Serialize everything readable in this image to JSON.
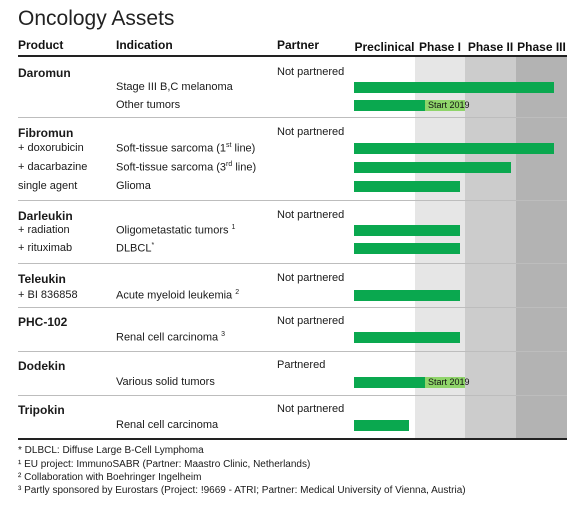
{
  "title": "Oncology Assets",
  "headers": {
    "product": "Product",
    "indication": "Indication",
    "partner": "Partner"
  },
  "colors": {
    "bar": "#0aa84f",
    "bar_light": "#8fd46a",
    "phase_bg": [
      "#ffffff",
      "#e6e6e6",
      "#cccccc",
      "#b3b3b3"
    ]
  },
  "chart_data": {
    "type": "bar",
    "orientation": "horizontal",
    "stages": [
      "Preclinical",
      "Phase I",
      "Phase II",
      "Phase III"
    ],
    "xlim": [
      0,
      4
    ],
    "rows": [
      {
        "product": "Daromun",
        "sub": "",
        "indication": "",
        "partner": "Not partnered",
        "progress": null
      },
      {
        "product": "",
        "sub": "",
        "indication": "Stage III  B,C melanoma",
        "partner": "",
        "progress": 3.75
      },
      {
        "product": "",
        "sub": "",
        "indication": "Other tumors",
        "partner": "",
        "progress": 1.2,
        "extension": 2.0,
        "note": "Start 2019"
      },
      {
        "product": "Fibromun",
        "sub": "",
        "indication": "",
        "partner": "Not partnered",
        "progress": null
      },
      {
        "product": "",
        "sub": "+ doxorubicin",
        "indication": "Soft-tissue sarcoma (1st line)",
        "partner": "",
        "progress": 3.75
      },
      {
        "product": "",
        "sub": "+ dacarbazine",
        "indication": "Soft-tissue sarcoma (3rd line)",
        "partner": "",
        "progress": 2.9
      },
      {
        "product": "",
        "sub": "single agent",
        "indication": "Glioma",
        "partner": "",
        "progress": 1.9
      },
      {
        "product": "Darleukin",
        "sub": "",
        "indication": "",
        "partner": "Not partnered",
        "progress": null
      },
      {
        "product": "",
        "sub": "+ radiation",
        "indication": "Oligometastatic tumors 1",
        "partner": "",
        "progress": 1.9
      },
      {
        "product": "",
        "sub": "+ rituximab",
        "indication": "DLBCL*",
        "partner": "",
        "progress": 1.9
      },
      {
        "product": "Teleukin",
        "sub": "",
        "indication": "",
        "partner": "Not partnered",
        "progress": null
      },
      {
        "product": "",
        "sub": "+ BI 836858",
        "indication": "Acute myeloid leukemia 2",
        "partner": "",
        "progress": 1.9
      },
      {
        "product": "PHC-102",
        "sub": "",
        "indication": "",
        "partner": "Not partnered",
        "progress": null
      },
      {
        "product": "",
        "sub": "",
        "indication": "Renal cell carcinoma 3",
        "partner": "",
        "progress": 1.9
      },
      {
        "product": "Dodekin",
        "sub": "",
        "indication": "",
        "partner": "Partnered",
        "progress": null
      },
      {
        "product": "",
        "sub": "",
        "indication": "Various solid tumors",
        "partner": "",
        "progress": 1.2,
        "extension": 2.0,
        "note": "Start 2019"
      },
      {
        "product": "Tripokin",
        "sub": "",
        "indication": "",
        "partner": "Not partnered",
        "progress": null
      },
      {
        "product": "",
        "sub": "",
        "indication": "Renal cell carcinoma",
        "partner": "",
        "progress": 0.9
      }
    ]
  },
  "footnotes": [
    "* DLBCL: Diffuse Large B-Cell Lymphoma",
    "¹ EU project: ImmunoSABR (Partner: Maastro Clinic, Netherlands)",
    "² Collaboration with Boehringer Ingelheim",
    "³ Partly sponsored by Eurostars (Project: !9669 - ATRI; Partner: Medical University of Vienna, Austria)"
  ]
}
